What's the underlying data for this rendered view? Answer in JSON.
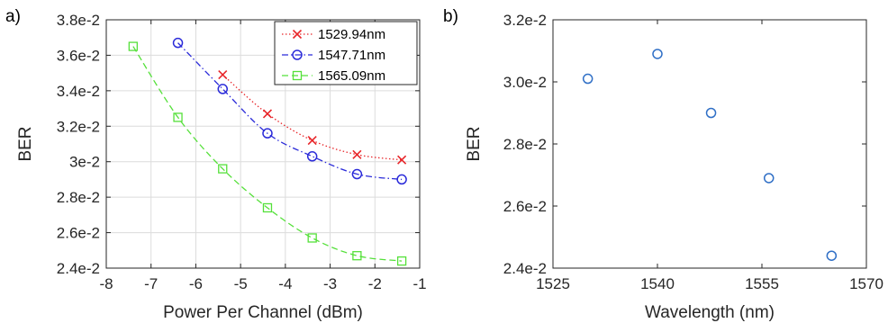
{
  "figure": {
    "panel_a_label": "a)",
    "panel_b_label": "b)"
  },
  "chart_data": [
    {
      "type": "line",
      "panel": "a)",
      "xlabel": "Power Per Channel (dBm)",
      "ylabel": "BER",
      "xlim": [
        -8,
        -1
      ],
      "ylim": [
        0.024,
        0.038
      ],
      "x_ticks": [
        "-8",
        "-7",
        "-6",
        "-5",
        "-4",
        "-3",
        "-2",
        "-1"
      ],
      "x_tick_values": [
        -8,
        -7,
        -6,
        -5,
        -4,
        -3,
        -2,
        -1
      ],
      "y_ticks": [
        "2.4e-2",
        "2.6e-2",
        "2.8e-2",
        "3e-2",
        "3.2e-2",
        "3.4e-2",
        "3.6e-2",
        "3.8e-2"
      ],
      "y_tick_values": [
        0.024,
        0.026,
        0.028,
        0.03,
        0.032,
        0.034,
        0.036,
        0.038
      ],
      "grid": true,
      "legend_position": "top-right",
      "series": [
        {
          "name": "1529.94nm",
          "color": "#e8262a",
          "marker": "x",
          "linestyle": "dotted",
          "x": [
            -5.4,
            -4.4,
            -3.4,
            -2.4,
            -1.4
          ],
          "y": [
            0.0349,
            0.0327,
            0.0312,
            0.0304,
            0.0301
          ]
        },
        {
          "name": "1547.71nm",
          "color": "#2b2bd9",
          "marker": "o",
          "linestyle": "dashdot",
          "x": [
            -6.4,
            -5.4,
            -4.4,
            -3.4,
            -2.4,
            -1.4
          ],
          "y": [
            0.0367,
            0.0341,
            0.0316,
            0.0303,
            0.0293,
            0.029
          ]
        },
        {
          "name": "1565.09nm",
          "color": "#55e03a",
          "marker": "s",
          "linestyle": "dashed",
          "x": [
            -7.4,
            -6.4,
            -5.4,
            -4.4,
            -3.4,
            -2.4,
            -1.4
          ],
          "y": [
            0.0365,
            0.0325,
            0.0296,
            0.0274,
            0.0257,
            0.0247,
            0.0244
          ]
        }
      ]
    },
    {
      "type": "scatter",
      "panel": "b)",
      "xlabel": "Wavelength (nm)",
      "ylabel": "BER",
      "xlim": [
        1525,
        1570
      ],
      "ylim": [
        0.024,
        0.032
      ],
      "x_ticks": [
        "1525",
        "1540",
        "1555",
        "1570"
      ],
      "x_tick_values": [
        1525,
        1540,
        1555,
        1570
      ],
      "y_ticks": [
        "2.4e-2",
        "2.6e-2",
        "2.8e-2",
        "3.0e-2",
        "3.2e-2"
      ],
      "y_tick_values": [
        0.024,
        0.026,
        0.028,
        0.03,
        0.032
      ],
      "grid": false,
      "series": [
        {
          "color": "#2f6fc6",
          "marker": "o",
          "x": [
            1530,
            1540,
            1547.7,
            1556,
            1565
          ],
          "y": [
            0.0301,
            0.0309,
            0.029,
            0.0269,
            0.0244
          ]
        }
      ]
    }
  ]
}
